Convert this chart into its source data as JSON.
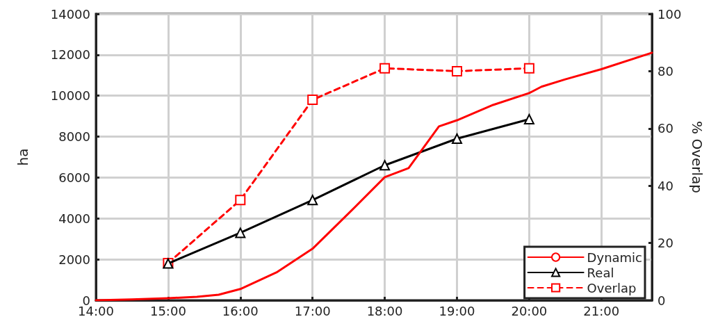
{
  "chart_data": {
    "type": "line",
    "ylabel": "ha",
    "y2label": "% Overlap",
    "xlim": [
      14,
      21.7
    ],
    "xticks": [
      {
        "value": 14,
        "label": "14:00"
      },
      {
        "value": 15,
        "label": "15:00"
      },
      {
        "value": 16,
        "label": "16:00"
      },
      {
        "value": 17,
        "label": "17:00"
      },
      {
        "value": 18,
        "label": "18:00"
      },
      {
        "value": 19,
        "label": "19:00"
      },
      {
        "value": 20,
        "label": "20:00"
      },
      {
        "value": 21,
        "label": "21:00"
      }
    ],
    "ylim": [
      0,
      14000
    ],
    "yticks": [
      0,
      2000,
      4000,
      6000,
      8000,
      10000,
      12000,
      14000
    ],
    "y2lim": [
      0,
      100
    ],
    "y2ticks": [
      0,
      20,
      40,
      60,
      80,
      100
    ],
    "grid": true,
    "legend": "bottom right",
    "series": [
      {
        "name": "Dynamic",
        "color": "#ff0000",
        "marker": "none",
        "line_style": "solid",
        "x": [
          14,
          14.5,
          15,
          15.4,
          15.7,
          16,
          16.5,
          17,
          17.5,
          18,
          18.33,
          18.75,
          19,
          19.5,
          20,
          20.17,
          20.5,
          21,
          21.7
        ],
        "values": [
          0,
          40,
          100,
          170,
          270,
          550,
          1360,
          2520,
          4250,
          6020,
          6460,
          8500,
          8800,
          9550,
          10130,
          10440,
          10800,
          11300,
          12100
        ]
      },
      {
        "name": "Real",
        "color": "#000000",
        "marker": "triangle",
        "line_style": "solid",
        "x": [
          15,
          16,
          17,
          18,
          19,
          20
        ],
        "values": [
          1800,
          3300,
          4900,
          6600,
          7900,
          8850
        ]
      },
      {
        "name": "Overlap",
        "color": "#ff0000",
        "marker": "square",
        "line_style": "dashed",
        "axis": "y2",
        "x": [
          15,
          16,
          17,
          18,
          19,
          20
        ],
        "values": [
          13,
          35,
          70,
          81,
          80,
          81
        ]
      }
    ]
  }
}
